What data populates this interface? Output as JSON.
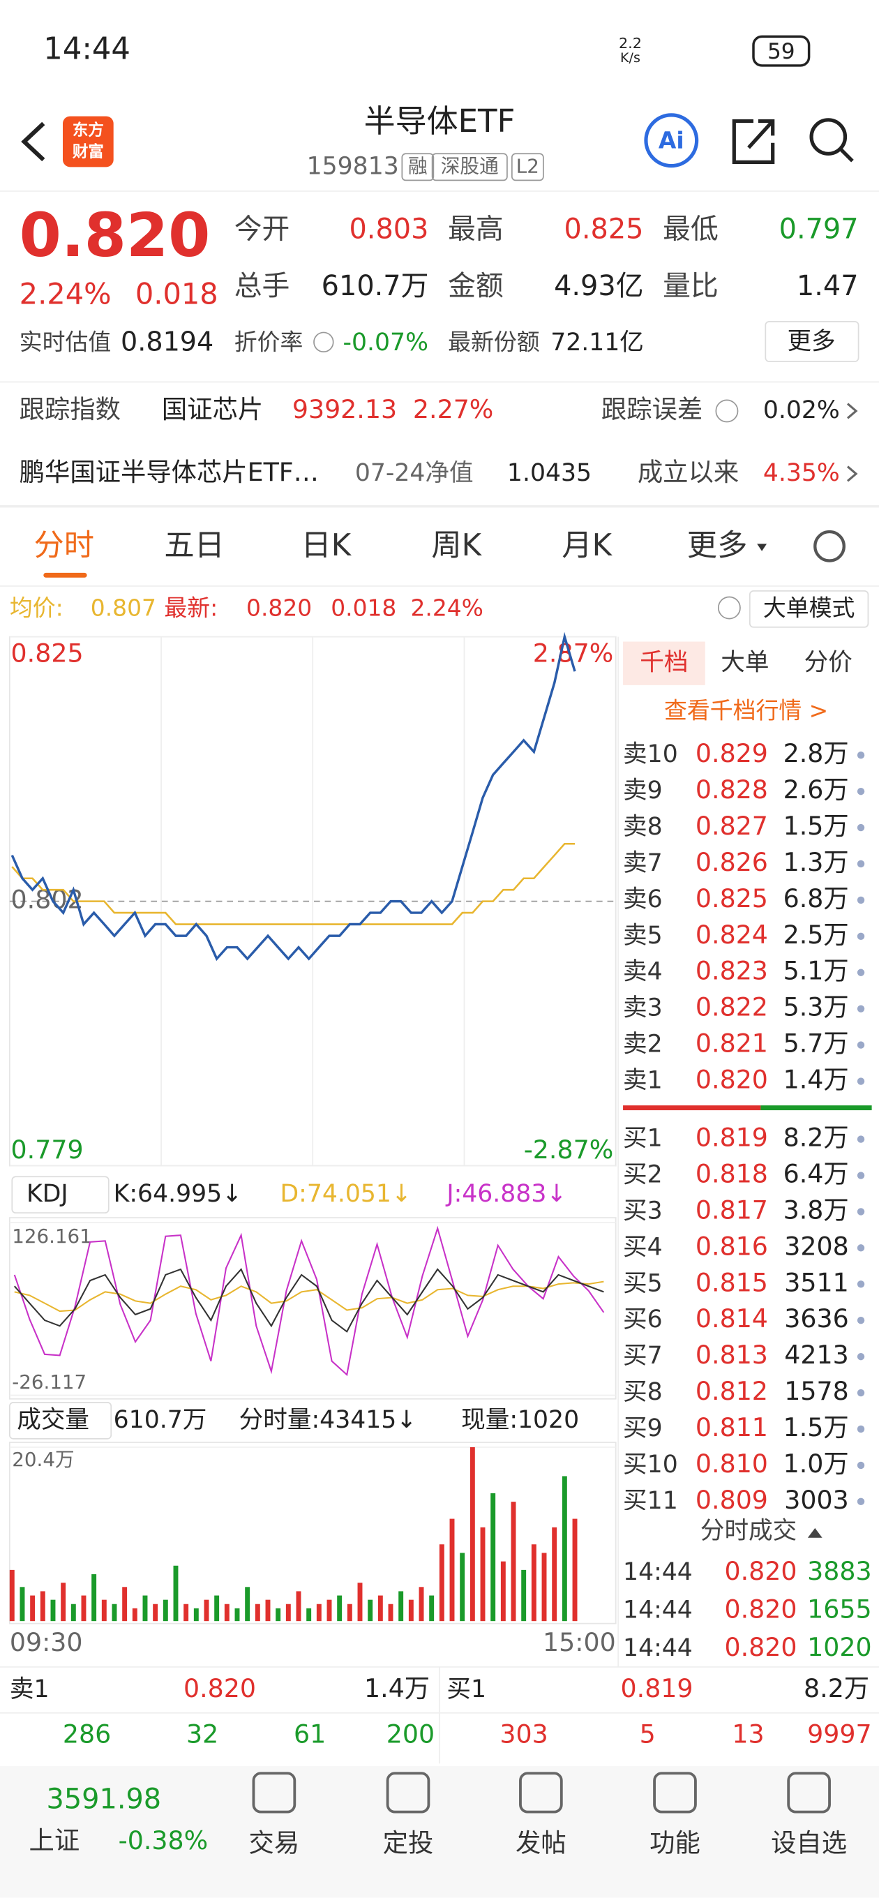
{
  "status": {
    "time": "14:44",
    "speed": "2.2",
    "speed_unit": "K/s",
    "battery": "59"
  },
  "header": {
    "logo": [
      "东方",
      "财富"
    ],
    "title": "半导体ETF",
    "code": "159813",
    "tags": [
      "融",
      "深股通",
      "L2"
    ]
  },
  "quote": {
    "price": "0.820",
    "change_pct": "2.24%",
    "change": "0.018",
    "stats": [
      [
        "今开",
        "0.803"
      ],
      [
        "最高",
        "0.825"
      ],
      [
        "最低",
        "0.797"
      ],
      [
        "总手",
        "610.7万"
      ],
      [
        "金额",
        "4.93亿"
      ],
      [
        "量比",
        "1.47"
      ]
    ],
    "estimate_label": "实时估值",
    "estimate": "0.8194",
    "discount_label": "折价率",
    "discount": "-0.07%",
    "shares_label": "最新份额",
    "shares": "72.11亿",
    "more": "更多"
  },
  "tracking": {
    "label": "跟踪指数",
    "index": "国证芯片",
    "index_value": "9392.13",
    "index_pct": "2.27%",
    "error_label": "跟踪误差",
    "error": "0.02%"
  },
  "fund": {
    "name": "鹏华国证半导体芯片ETF…",
    "nav_label": "07-24净值",
    "nav": "1.0435",
    "since_label": "成立以来",
    "since": "4.35%"
  },
  "tabs": [
    "分时",
    "五日",
    "日K",
    "周K",
    "月K",
    "更多"
  ],
  "info_bar": {
    "avg_label": "均价:",
    "avg": "0.807",
    "latest_label": "最新:",
    "latest": "0.820",
    "change": "0.018",
    "pct": "2.24%",
    "mode": "大单模式"
  },
  "chart_data": [
    {
      "type": "line",
      "ylim": [
        0.779,
        0.825
      ],
      "yticks": [
        0.825,
        0.802,
        0.779
      ],
      "pct_labels": [
        "2.87%",
        "-2.87%"
      ],
      "time_labels": [
        "09:30",
        "15:00"
      ],
      "series": [
        {
          "color": "#2a5caa",
          "values": [
            0.806,
            0.804,
            0.803,
            0.804,
            0.802,
            0.801,
            0.803,
            0.8,
            0.801,
            0.8,
            0.799,
            0.8,
            0.801,
            0.799,
            0.8,
            0.8,
            0.799,
            0.799,
            0.8,
            0.799,
            0.797,
            0.798,
            0.798,
            0.797,
            0.798,
            0.799,
            0.798,
            0.797,
            0.798,
            0.797,
            0.798,
            0.799,
            0.799,
            0.8,
            0.8,
            0.801,
            0.801,
            0.802,
            0.802,
            0.801,
            0.801,
            0.802,
            0.801,
            0.802,
            0.805,
            0.808,
            0.811,
            0.813,
            0.814,
            0.815,
            0.816,
            0.815,
            0.818,
            0.821,
            0.825,
            0.822
          ]
        },
        {
          "color": "#e8b630",
          "values": [
            0.805,
            0.804,
            0.804,
            0.803,
            0.803,
            0.803,
            0.802,
            0.802,
            0.802,
            0.802,
            0.801,
            0.801,
            0.801,
            0.801,
            0.801,
            0.801,
            0.8,
            0.8,
            0.8,
            0.8,
            0.8,
            0.8,
            0.8,
            0.8,
            0.8,
            0.8,
            0.8,
            0.8,
            0.8,
            0.8,
            0.8,
            0.8,
            0.8,
            0.8,
            0.8,
            0.8,
            0.8,
            0.8,
            0.8,
            0.8,
            0.8,
            0.8,
            0.8,
            0.8,
            0.801,
            0.801,
            0.802,
            0.802,
            0.803,
            0.803,
            0.804,
            0.804,
            0.805,
            0.806,
            0.807,
            0.807
          ]
        }
      ]
    },
    {
      "type": "line",
      "indicator": "KDJ",
      "ylim": [
        -26.117,
        126.161
      ],
      "yticks": [
        126.161,
        -26.117
      ],
      "series": [
        {
          "name": "K:64.995↓",
          "color": "#333333",
          "values": [
            70,
            55,
            40,
            35,
            50,
            75,
            80,
            60,
            45,
            50,
            80,
            85,
            60,
            40,
            70,
            85,
            55,
            35,
            60,
            80,
            70,
            40,
            30,
            55,
            75,
            60,
            45,
            65,
            85,
            70,
            50,
            60,
            80,
            75,
            70,
            65,
            80,
            75,
            70,
            64.995
          ]
        },
        {
          "name": "D:74.051↓",
          "color": "#e8b630",
          "values": [
            65,
            62,
            55,
            48,
            49,
            58,
            65,
            63,
            57,
            55,
            63,
            70,
            67,
            58,
            62,
            70,
            65,
            55,
            57,
            65,
            67,
            58,
            49,
            51,
            59,
            60,
            55,
            58,
            67,
            68,
            62,
            61,
            67,
            70,
            70,
            68,
            72,
            73,
            72,
            74.051
          ]
        },
        {
          "name": "J:46.883↓",
          "color": "#c832c8",
          "values": [
            80,
            41,
            10,
            9,
            52,
            109,
            110,
            54,
            21,
            40,
            114,
            115,
            46,
            4,
            86,
            115,
            35,
            -5,
            66,
            110,
            76,
            4,
            -8,
            63,
            107,
            60,
            25,
            79,
            121,
            74,
            26,
            58,
            106,
            85,
            70,
            59,
            96,
            79,
            66,
            46.883
          ]
        }
      ]
    },
    {
      "type": "bar",
      "title": "成交量",
      "total": "610.7万",
      "period_volume": "分时量:43415↓",
      "current_volume": "现量:1020",
      "ylim": [
        0,
        204000
      ],
      "yticks": [
        {
          "value": 204000,
          "label": "20.4万"
        }
      ],
      "values": [
        60000,
        40000,
        30000,
        35000,
        25000,
        45000,
        20000,
        30000,
        55000,
        25000,
        20000,
        40000,
        15000,
        30000,
        20000,
        25000,
        65000,
        20000,
        15000,
        25000,
        30000,
        20000,
        15000,
        40000,
        20000,
        25000,
        15000,
        20000,
        35000,
        15000,
        20000,
        25000,
        30000,
        20000,
        45000,
        25000,
        30000,
        20000,
        35000,
        25000,
        40000,
        30000,
        90000,
        120000,
        80000,
        204000,
        110000,
        150000,
        70000,
        140000,
        60000,
        90000,
        80000,
        110000,
        170000,
        120000
      ],
      "colors": [
        "#e0302d",
        "#1a9a2a",
        "#e0302d",
        "#e0302d",
        "#1a9a2a",
        "#e0302d",
        "#1a9a2a",
        "#e0302d",
        "#1a9a2a",
        "#e0302d",
        "#1a9a2a",
        "#e0302d",
        "#e0302d",
        "#1a9a2a",
        "#e0302d",
        "#1a9a2a",
        "#1a9a2a",
        "#e0302d",
        "#1a9a2a",
        "#e0302d",
        "#1a9a2a",
        "#e0302d",
        "#1a9a2a",
        "#1a9a2a",
        "#e0302d",
        "#e0302d",
        "#1a9a2a",
        "#e0302d",
        "#e0302d",
        "#1a9a2a",
        "#e0302d",
        "#e0302d",
        "#1a9a2a",
        "#e0302d",
        "#e0302d",
        "#1a9a2a",
        "#e0302d",
        "#e0302d",
        "#1a9a2a",
        "#e0302d",
        "#e0302d",
        "#1a9a2a",
        "#e0302d",
        "#e0302d",
        "#1a9a2a",
        "#e0302d",
        "#e0302d",
        "#1a9a2a",
        "#e0302d",
        "#e0302d",
        "#1a9a2a",
        "#e0302d",
        "#e0302d",
        "#e0302d",
        "#1a9a2a",
        "#e0302d"
      ]
    }
  ],
  "order_book": {
    "tabs": [
      "千档",
      "大单",
      "分价"
    ],
    "link": "查看千档行情 >",
    "sells": [
      [
        "卖10",
        "0.829",
        "2.8万"
      ],
      [
        "卖9",
        "0.828",
        "2.6万"
      ],
      [
        "卖8",
        "0.827",
        "1.5万"
      ],
      [
        "卖7",
        "0.826",
        "1.3万"
      ],
      [
        "卖6",
        "0.825",
        "6.8万"
      ],
      [
        "卖5",
        "0.824",
        "2.5万"
      ],
      [
        "卖4",
        "0.823",
        "5.1万"
      ],
      [
        "卖3",
        "0.822",
        "5.3万"
      ],
      [
        "卖2",
        "0.821",
        "5.7万"
      ],
      [
        "卖1",
        "0.820",
        "1.4万"
      ]
    ],
    "buys": [
      [
        "买1",
        "0.819",
        "8.2万"
      ],
      [
        "买2",
        "0.818",
        "6.4万"
      ],
      [
        "买3",
        "0.817",
        "3.8万"
      ],
      [
        "买4",
        "0.816",
        "3208"
      ],
      [
        "买5",
        "0.815",
        "3511"
      ],
      [
        "买6",
        "0.814",
        "3636"
      ],
      [
        "买7",
        "0.813",
        "4213"
      ],
      [
        "买8",
        "0.812",
        "1578"
      ],
      [
        "买9",
        "0.811",
        "1.5万"
      ],
      [
        "买10",
        "0.810",
        "1.0万"
      ],
      [
        "买11",
        "0.809",
        "3003"
      ]
    ],
    "trades_title": "分时成交",
    "trades": [
      [
        "14:44",
        "0.820",
        "3883"
      ],
      [
        "14:44",
        "0.820",
        "1655"
      ],
      [
        "14:44",
        "0.820",
        "1020"
      ]
    ]
  },
  "bottom": {
    "sell": [
      "卖1",
      "0.820",
      "1.4万"
    ],
    "buy": [
      "买1",
      "0.819",
      "8.2万"
    ],
    "green": [
      "286",
      "32",
      "61",
      "200"
    ],
    "red": [
      "303",
      "5",
      "13",
      "9997"
    ]
  },
  "nav": {
    "index": "3591.98",
    "market": "上证",
    "pct": "-0.38%",
    "items": [
      "交易",
      "定投",
      "发帖",
      "功能",
      "设自选"
    ]
  }
}
